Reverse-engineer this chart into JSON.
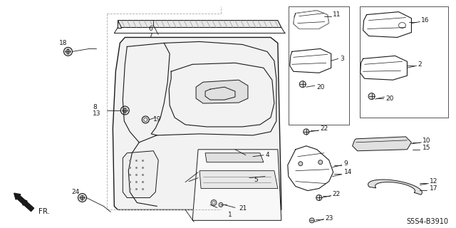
{
  "bg_color": "#ffffff",
  "diagram_code": "S5S4-B3910",
  "dark": "#1a1a1a",
  "gray": "#888888",
  "light_gray": "#cccccc",
  "panel_fill": "#f5f5f5"
}
